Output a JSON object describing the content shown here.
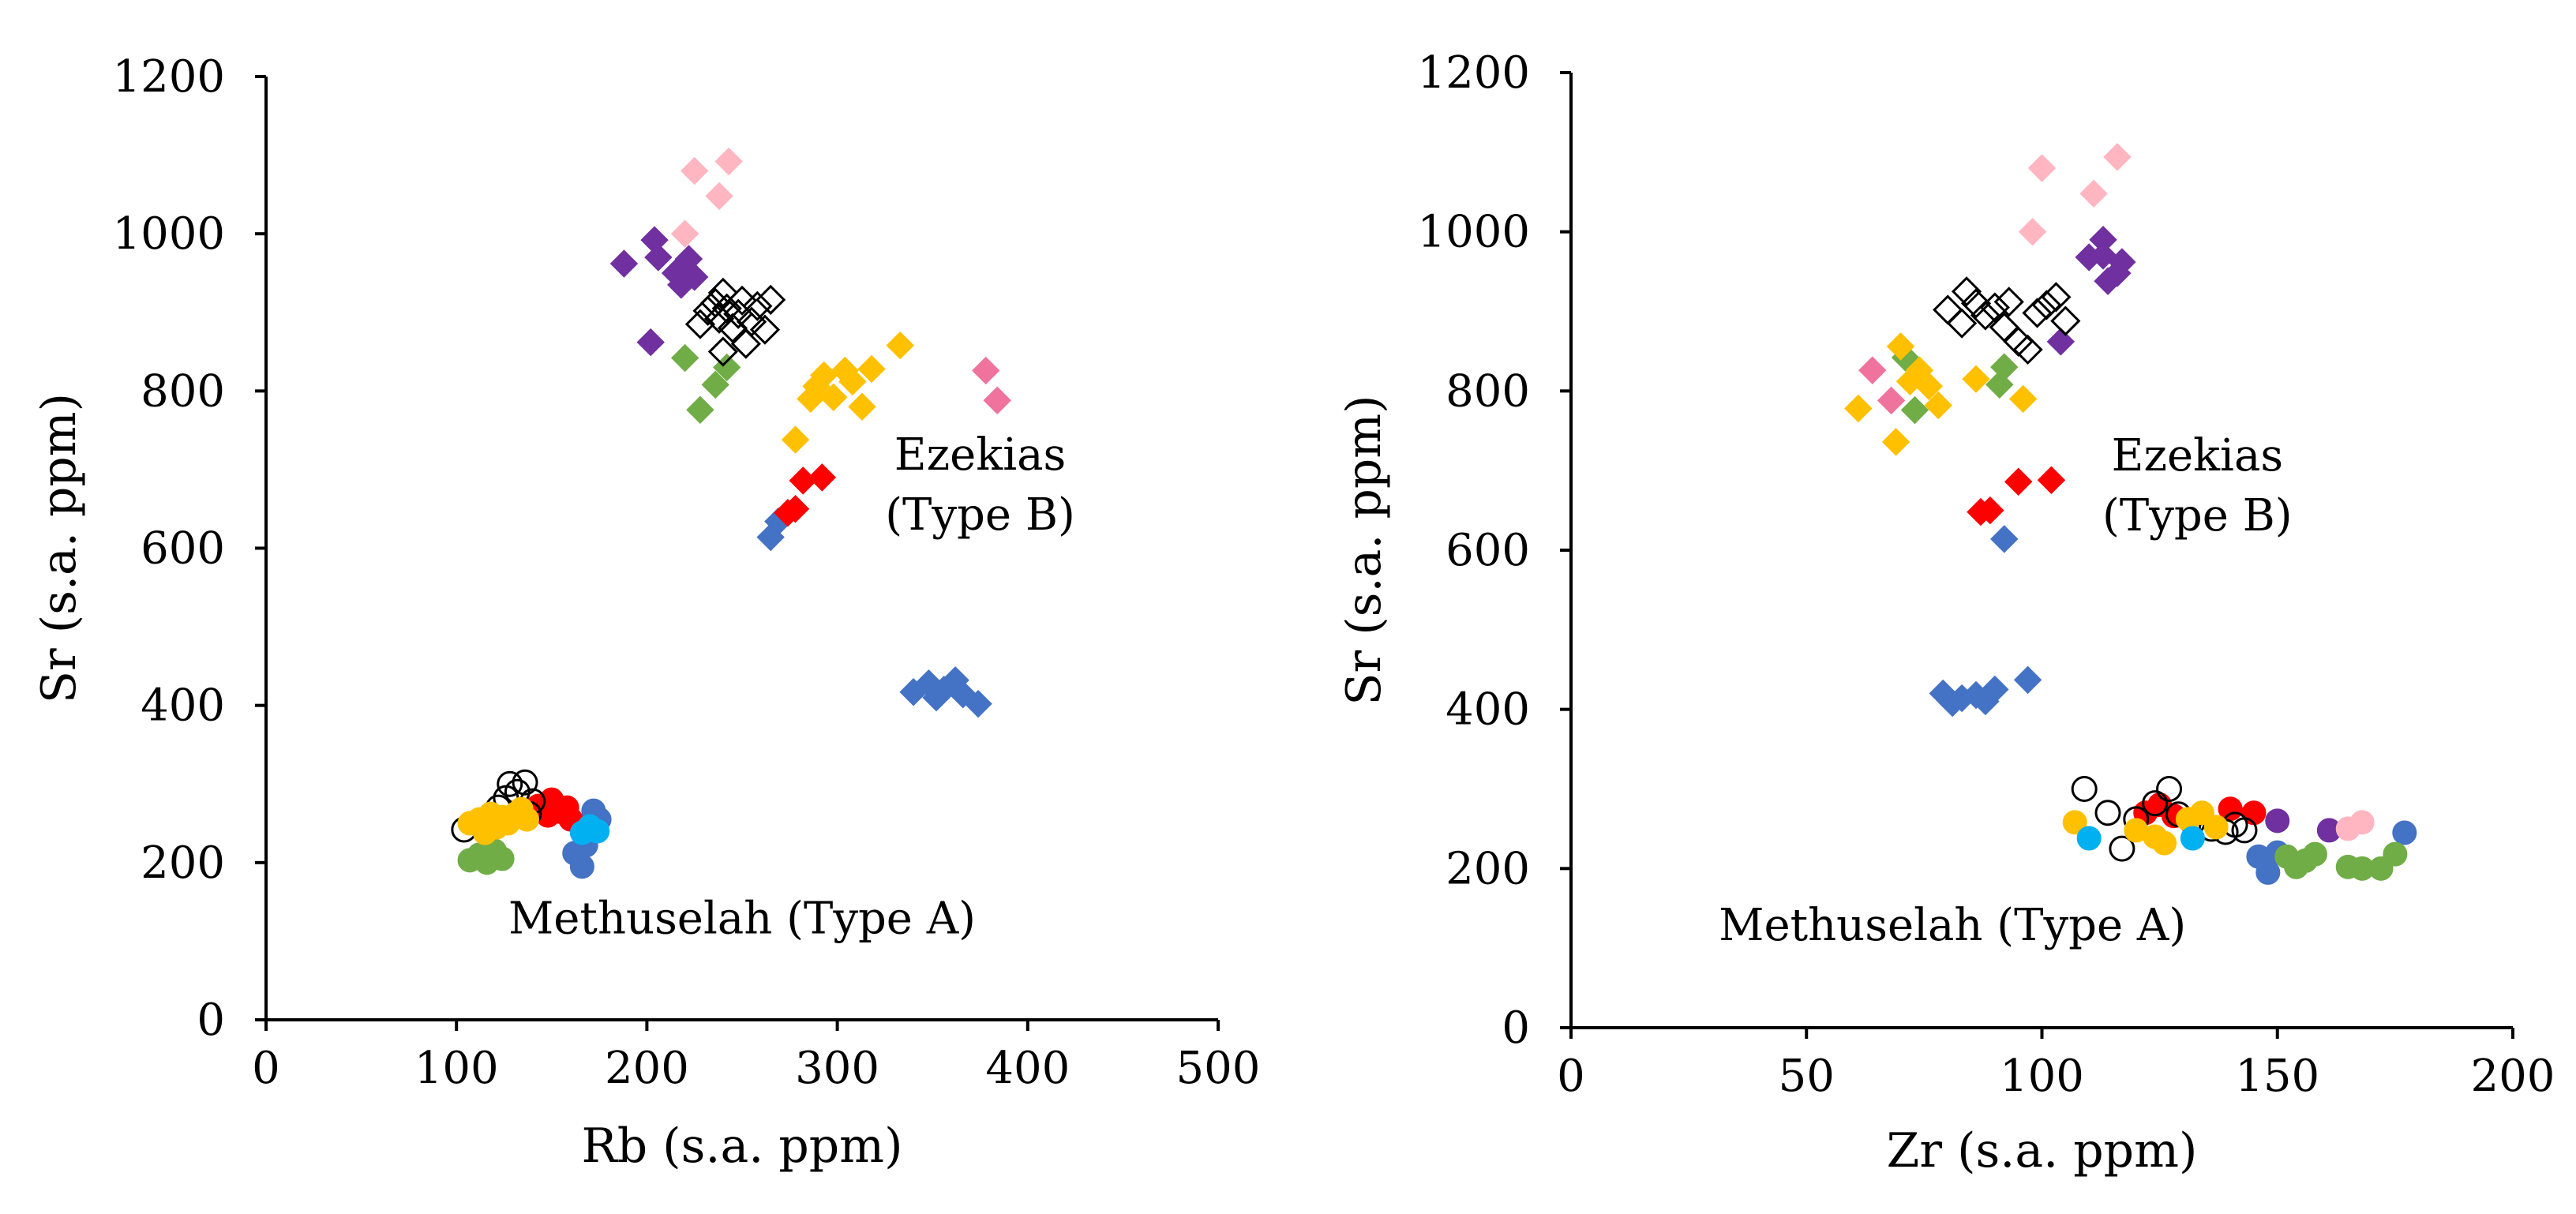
{
  "colors": {
    "blue": "#4472c4",
    "purple": "#7030a0",
    "pink": "#ffb6c1",
    "hotpink": "#f0739e",
    "green": "#70ad47",
    "gold": "#ffc000",
    "red": "#ff0000",
    "cyan": "#00b0f0",
    "open": "#000000"
  },
  "chart_data": [
    {
      "type": "scatter",
      "title": "",
      "xlabel": "Rb (s.a. ppm)",
      "ylabel": "Sr (s.a. ppm)",
      "xlim": [
        0,
        500
      ],
      "ylim": [
        0,
        1200
      ],
      "xticks": [
        "0",
        "100",
        "200",
        "300",
        "400",
        "500"
      ],
      "yticks": [
        "0",
        "200",
        "400",
        "600",
        "800",
        "1000",
        "1200"
      ],
      "annotations": [
        {
          "lines": [
            "Ezekias",
            "(Type B)"
          ],
          "x": 375,
          "y": 700
        },
        {
          "lines": [
            "Methuselah (Type A)"
          ],
          "x": 250,
          "y": 110
        }
      ],
      "series": [
        {
          "group": "Ezekias (Type B)",
          "marker": "diamond",
          "color": "blue",
          "points": [
            [
              265,
              614
            ],
            [
              269,
              634
            ],
            [
              340,
              417
            ],
            [
              348,
              428
            ],
            [
              352,
              410
            ],
            [
              356,
              420
            ],
            [
              362,
              432
            ],
            [
              366,
              414
            ],
            [
              374,
              402
            ]
          ]
        },
        {
          "group": "Ezekias (Type B)",
          "marker": "diamond",
          "color": "purple",
          "points": [
            [
              188,
              962
            ],
            [
              202,
              862
            ],
            [
              204,
              992
            ],
            [
              206,
              970
            ],
            [
              215,
              950
            ],
            [
              218,
              935
            ],
            [
              222,
              968
            ],
            [
              225,
              945
            ]
          ]
        },
        {
          "group": "Ezekias (Type B)",
          "marker": "diamond",
          "color": "pink",
          "points": [
            [
              220,
              1000
            ],
            [
              225,
              1080
            ],
            [
              238,
              1048
            ],
            [
              243,
              1092
            ]
          ]
        },
        {
          "group": "Ezekias (Type B)",
          "marker": "diamond",
          "color": "hotpink",
          "points": [
            [
              378,
              826
            ],
            [
              384,
              788
            ]
          ]
        },
        {
          "group": "Ezekias (Type B)",
          "marker": "diamond",
          "color": "green",
          "points": [
            [
              220,
              842
            ],
            [
              228,
              776
            ],
            [
              236,
              808
            ],
            [
              242,
              830
            ]
          ]
        },
        {
          "group": "Ezekias (Type B)",
          "marker": "open-diamond",
          "color": "open",
          "points": [
            [
              228,
              885
            ],
            [
              232,
              902
            ],
            [
              236,
              912
            ],
            [
              238,
              892
            ],
            [
              240,
              925
            ],
            [
              242,
              905
            ],
            [
              245,
              880
            ],
            [
              248,
              898
            ],
            [
              250,
              915
            ],
            [
              252,
              860
            ],
            [
              255,
              888
            ],
            [
              258,
              908
            ],
            [
              262,
              878
            ],
            [
              265,
              916
            ],
            [
              240,
              850
            ]
          ]
        },
        {
          "group": "Ezekias (Type B)",
          "marker": "diamond",
          "color": "gold",
          "points": [
            [
              278,
              738
            ],
            [
              286,
              790
            ],
            [
              289,
              806
            ],
            [
              293,
              820
            ],
            [
              298,
              792
            ],
            [
              304,
              826
            ],
            [
              308,
              812
            ],
            [
              313,
              780
            ],
            [
              318,
              828
            ],
            [
              333,
              858
            ]
          ]
        },
        {
          "group": "Ezekias (Type B)",
          "marker": "diamond",
          "color": "red",
          "points": [
            [
              274,
              645
            ],
            [
              278,
              650
            ],
            [
              282,
              686
            ],
            [
              292,
              690
            ]
          ]
        },
        {
          "group": "Methuselah (Type A)",
          "marker": "circle",
          "color": "blue",
          "points": [
            [
              162,
              212
            ],
            [
              166,
              195
            ],
            [
              168,
              222
            ],
            [
              170,
              250
            ],
            [
              172,
              266
            ],
            [
              175,
              255
            ]
          ]
        },
        {
          "group": "Methuselah (Type A)",
          "marker": "circle",
          "color": "green",
          "points": [
            [
              107,
              203
            ],
            [
              112,
              210
            ],
            [
              116,
              200
            ],
            [
              120,
              215
            ],
            [
              124,
              205
            ]
          ]
        },
        {
          "group": "Methuselah (Type A)",
          "marker": "circle",
          "color": "red",
          "points": [
            [
              143,
              272
            ],
            [
              148,
              260
            ],
            [
              150,
              280
            ],
            [
              154,
              265
            ],
            [
              158,
              270
            ],
            [
              160,
              255
            ]
          ]
        },
        {
          "group": "Methuselah (Type A)",
          "marker": "open-circle",
          "color": "open",
          "points": [
            [
              104,
              242
            ],
            [
              116,
              250
            ],
            [
              122,
              270
            ],
            [
              126,
              282
            ],
            [
              128,
              300
            ],
            [
              132,
              290
            ],
            [
              136,
              302
            ],
            [
              138,
              262
            ],
            [
              140,
              278
            ]
          ]
        },
        {
          "group": "Methuselah (Type A)",
          "marker": "circle",
          "color": "gold",
          "points": [
            [
              107,
              250
            ],
            [
              112,
              255
            ],
            [
              115,
              238
            ],
            [
              118,
              262
            ],
            [
              121,
              245
            ],
            [
              124,
              258
            ],
            [
              127,
              250
            ],
            [
              131,
              262
            ],
            [
              134,
              268
            ],
            [
              137,
              255
            ]
          ]
        },
        {
          "group": "Methuselah (Type A)",
          "marker": "circle",
          "color": "cyan",
          "points": [
            [
              166,
              238
            ],
            [
              170,
              246
            ],
            [
              174,
              240
            ]
          ]
        }
      ]
    },
    {
      "type": "scatter",
      "title": "",
      "xlabel": "Zr (s.a. ppm)",
      "ylabel": "Sr (s.a. ppm)",
      "xlim": [
        0,
        200
      ],
      "ylim": [
        0,
        1200
      ],
      "xticks": [
        "0",
        "50",
        "100",
        "150",
        "200"
      ],
      "yticks": [
        "0",
        "200",
        "400",
        "600",
        "800",
        "1000",
        "1200"
      ],
      "annotations": [
        {
          "lines": [
            "Ezekias",
            "(Type B)"
          ],
          "x": 133,
          "y": 700
        },
        {
          "lines": [
            "Methuselah (Type A)"
          ],
          "x": 81,
          "y": 110
        }
      ],
      "series": [
        {
          "group": "Ezekias (Type B)",
          "marker": "diamond",
          "color": "blue",
          "points": [
            [
              79,
              420
            ],
            [
              81,
              408
            ],
            [
              83,
              414
            ],
            [
              86,
              418
            ],
            [
              88,
              410
            ],
            [
              90,
              425
            ],
            [
              92,
              614
            ],
            [
              97,
              437
            ]
          ]
        },
        {
          "group": "Ezekias (Type B)",
          "marker": "diamond",
          "color": "purple",
          "points": [
            [
              104,
              862
            ],
            [
              110,
              968
            ],
            [
              113,
              990
            ],
            [
              114,
              938
            ],
            [
              116,
              948
            ],
            [
              117,
              962
            ],
            [
              113,
              970
            ]
          ]
        },
        {
          "group": "Ezekias (Type B)",
          "marker": "diamond",
          "color": "pink",
          "points": [
            [
              98,
              1000
            ],
            [
              100,
              1080
            ],
            [
              111,
              1048
            ],
            [
              116,
              1094
            ]
          ]
        },
        {
          "group": "Ezekias (Type B)",
          "marker": "diamond",
          "color": "hotpink",
          "points": [
            [
              64,
              826
            ],
            [
              68,
              788
            ]
          ]
        },
        {
          "group": "Ezekias (Type B)",
          "marker": "diamond",
          "color": "green",
          "points": [
            [
              71,
              842
            ],
            [
              73,
              776
            ],
            [
              91,
              808
            ],
            [
              92,
              830
            ]
          ]
        },
        {
          "group": "Ezekias (Type B)",
          "marker": "open-diamond",
          "color": "open",
          "points": [
            [
              80,
              902
            ],
            [
              83,
              885
            ],
            [
              84,
              925
            ],
            [
              86,
              910
            ],
            [
              88,
              895
            ],
            [
              90,
              905
            ],
            [
              92,
              880
            ],
            [
              93,
              912
            ],
            [
              95,
              862
            ],
            [
              97,
              852
            ],
            [
              99,
              898
            ],
            [
              101,
              908
            ],
            [
              103,
              918
            ],
            [
              105,
              888
            ]
          ]
        },
        {
          "group": "Ezekias (Type B)",
          "marker": "diamond",
          "color": "gold",
          "points": [
            [
              61,
              778
            ],
            [
              69,
              736
            ],
            [
              70,
              856
            ],
            [
              72,
              812
            ],
            [
              74,
              826
            ],
            [
              76,
              806
            ],
            [
              78,
              782
            ],
            [
              86,
              815
            ],
            [
              96,
              790
            ]
          ]
        },
        {
          "group": "Ezekias (Type B)",
          "marker": "diamond",
          "color": "red",
          "points": [
            [
              87,
              648
            ],
            [
              89,
              650
            ],
            [
              95,
              686
            ],
            [
              102,
              688
            ]
          ]
        },
        {
          "group": "Methuselah (Type A)",
          "marker": "circle",
          "color": "blue",
          "points": [
            [
              146,
              215
            ],
            [
              148,
              195
            ],
            [
              150,
              220
            ],
            [
              177,
              245
            ]
          ]
        },
        {
          "group": "Methuselah (Type A)",
          "marker": "circle",
          "color": "green",
          "points": [
            [
              152,
              215
            ],
            [
              154,
              202
            ],
            [
              156,
              210
            ],
            [
              158,
              218
            ],
            [
              165,
              202
            ],
            [
              168,
              200
            ],
            [
              172,
              200
            ],
            [
              175,
              218
            ]
          ]
        },
        {
          "group": "Methuselah (Type A)",
          "marker": "circle",
          "color": "red",
          "points": [
            [
              122,
              270
            ],
            [
              125,
              280
            ],
            [
              128,
              266
            ],
            [
              140,
              275
            ],
            [
              145,
              270
            ]
          ]
        },
        {
          "group": "Methuselah (Type A)",
          "marker": "circle",
          "color": "purple",
          "points": [
            [
              150,
              260
            ],
            [
              161,
              248
            ]
          ]
        },
        {
          "group": "Methuselah (Type A)",
          "marker": "circle",
          "color": "pink",
          "points": [
            [
              165,
              250
            ],
            [
              168,
              258
            ]
          ]
        },
        {
          "group": "Methuselah (Type A)",
          "marker": "open-circle",
          "color": "open",
          "points": [
            [
              109,
              300
            ],
            [
              114,
              270
            ],
            [
              117,
              225
            ],
            [
              120,
              262
            ],
            [
              124,
              282
            ],
            [
              127,
              300
            ],
            [
              129,
              268
            ],
            [
              132,
              258
            ],
            [
              136,
              250
            ],
            [
              139,
              246
            ],
            [
              141,
              255
            ],
            [
              143,
              248
            ]
          ]
        },
        {
          "group": "Methuselah (Type A)",
          "marker": "circle",
          "color": "gold",
          "points": [
            [
              107,
              258
            ],
            [
              120,
              248
            ],
            [
              124,
              240
            ],
            [
              126,
              232
            ],
            [
              131,
              262
            ],
            [
              134,
              270
            ],
            [
              137,
              252
            ]
          ]
        },
        {
          "group": "Methuselah (Type A)",
          "marker": "circle",
          "color": "cyan",
          "points": [
            [
              110,
              238
            ],
            [
              132,
              238
            ]
          ]
        }
      ]
    }
  ]
}
